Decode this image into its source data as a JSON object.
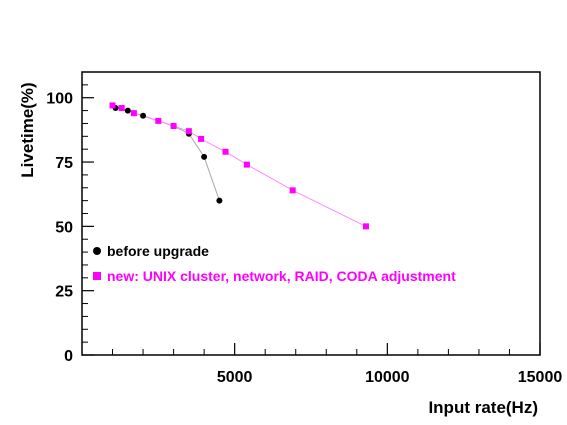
{
  "chart_data": {
    "type": "scatter",
    "title": "",
    "xlabel": "Input rate(Hz)",
    "ylabel": "Livetime(%)",
    "xlim": [
      0,
      15000
    ],
    "ylim": [
      0,
      110
    ],
    "x_ticks": [
      5000,
      10000,
      15000
    ],
    "y_ticks": [
      0,
      25,
      50,
      75,
      100
    ],
    "grid": false,
    "legend_position": "inside-lower-left",
    "series": [
      {
        "name": "before upgrade",
        "marker": "circle",
        "color": "#000000",
        "line_color": "#aaaaaa",
        "x": [
          1100,
          1500,
          2000,
          3000,
          3500,
          4000,
          4500
        ],
        "y": [
          96,
          95,
          93,
          89,
          86,
          77,
          60
        ]
      },
      {
        "name": "new: UNIX cluster, network, RAID, CODA adjustment",
        "marker": "square",
        "color": "#ff00ff",
        "line_color": "#ff88ff",
        "x": [
          1000,
          1300,
          1700,
          2500,
          3000,
          3500,
          3900,
          4700,
          5400,
          6900,
          9300
        ],
        "y": [
          97,
          96,
          94,
          91,
          89,
          87,
          84,
          79,
          74,
          64,
          50
        ]
      }
    ]
  }
}
